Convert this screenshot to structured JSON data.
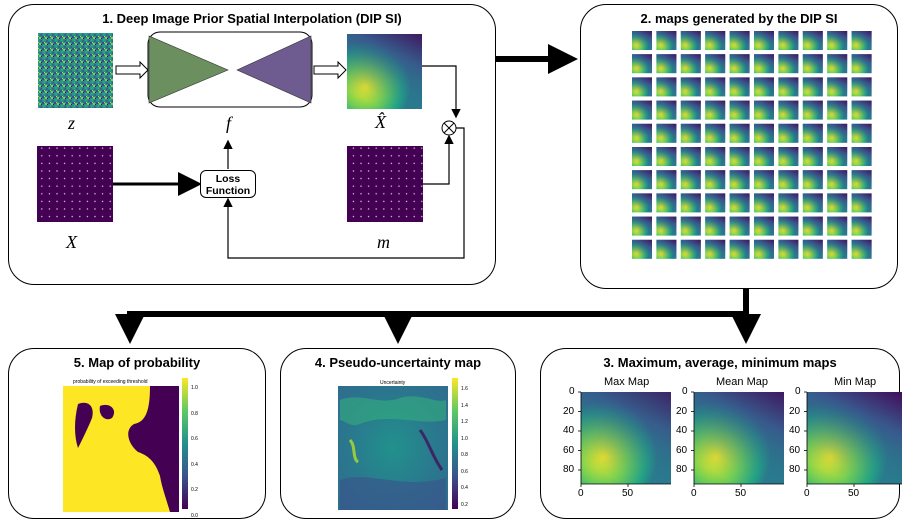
{
  "panels": {
    "dip": {
      "title": "1. Deep Image Prior Spatial Interpolation (DIP SI)"
    },
    "maps": {
      "title": "2. maps generated by the DIP SI"
    },
    "minmax": {
      "title": "3. Maximum, average, minimum maps"
    },
    "uncertainty": {
      "title": "4. Pseudo-uncertainty map"
    },
    "probability": {
      "title": "5. Map of probability"
    }
  },
  "symbols": {
    "z": "z",
    "f": "f",
    "xhat": "X̂",
    "x": "X",
    "m": "m"
  },
  "loss": {
    "line1": "Loss",
    "line2": "Function"
  },
  "maxmap": {
    "label": "Max Map"
  },
  "meanmap": {
    "label": "Mean Map"
  },
  "minmap": {
    "label": "Min Map"
  },
  "yticks": [
    "0",
    "20",
    "40",
    "60",
    "80"
  ],
  "xticks": [
    "0",
    "50"
  ],
  "uncert": {
    "label": "Uncertainty",
    "cbar": [
      "1.6",
      "1.4",
      "1.2",
      "1.0",
      "0.8",
      "0.6",
      "0.4",
      "0.2"
    ]
  },
  "prob": {
    "label": "probability of exceeding threshold",
    "cbar": [
      "1.0",
      "0.8",
      "0.6",
      "0.4",
      "0.2",
      "0.0"
    ]
  },
  "colors": {
    "viridis_dark": "#440154",
    "viridis_yellow": "#fde725",
    "network_left": "#6b8f5f",
    "network_right": "#6e5b8f"
  }
}
